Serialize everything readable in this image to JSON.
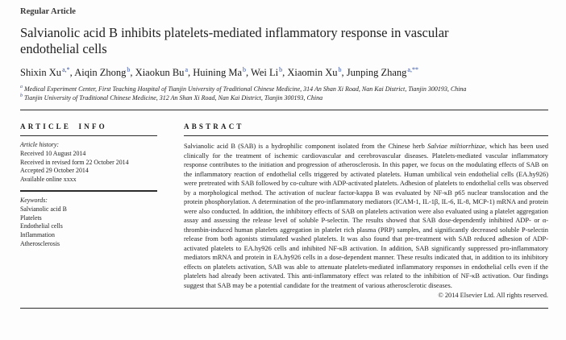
{
  "page": {
    "kicker": "Regular Article",
    "title": "Salvianolic acid B inhibits platelets-mediated inflammatory response in vascular endothelial cells"
  },
  "authors": [
    {
      "name": "Shixin Xu",
      "sup": "a,*"
    },
    {
      "name": "Aiqin Zhong",
      "sup": "b"
    },
    {
      "name": "Xiaokun Bu",
      "sup": "a"
    },
    {
      "name": "Huining Ma",
      "sup": "b"
    },
    {
      "name": "Wei Li",
      "sup": "b"
    },
    {
      "name": "Xiaomin Xu",
      "sup": "b"
    },
    {
      "name": "Junping Zhang",
      "sup": "a,**"
    }
  ],
  "affiliations": [
    {
      "marker": "a",
      "text": "Medical Experiment Center, First Teaching Hospital of Tianjin University of Traditional Chinese Medicine, 314 An Shan Xi Road, Nan Kai District, Tianjin 300193, China"
    },
    {
      "marker": "b",
      "text": "Tianjin University of Traditional Chinese Medicine, 312 An Shan Xi Road, Nan Kai District, Tianjin 300193, China"
    }
  ],
  "article_info": {
    "heading": "ARTICLE INFO",
    "history_label": "Article history:",
    "history": [
      "Received 10 August 2014",
      "Received in revised form 22 October 2014",
      "Accepted 29 October 2014",
      "Available online xxxx"
    ],
    "keywords_label": "Keywords:",
    "keywords": [
      "Salvianolic acid B",
      "Platelets",
      "Endothelial cells",
      "Inflammation",
      "Atherosclerosis"
    ]
  },
  "abstract": {
    "heading": "ABSTRACT",
    "lead": "Salvianolic acid B (SAB) is a hydrophilic component isolated from the Chinese herb ",
    "italic_term": "Salviae miltiorrhizae",
    "body": ", which has been used clinically for the treatment of ischemic cardiovascular and cerebrovascular diseases. Platelets-mediated vascular inflammatory response contributes to the initiation and progression of atherosclerosis. In this paper, we focus on the modulating effects of SAB on the inflammatory reaction of endothelial cells triggered by activated platelets. Human umbilical vein endothelial cells (EA.hy926) were pretreated with SAB followed by co-culture with ADP-activated platelets. Adhesion of platelets to endothelial cells was observed by a morphological method. The activation of nuclear factor-kappa B was evaluated by NF-κB p65 nuclear translocation and the protein phosphorylation. A determination of the pro-inflammatory mediators (ICAM-1, IL-1β, IL-6, IL-8, MCP-1) mRNA and protein were also conducted. In addition, the inhibitory effects of SAB on platelets activation were also evaluated using a platelet aggregation assay and assessing the release level of soluble P-selectin. The results showed that SAB dose-dependently inhibited ADP- or α-thrombin-induced human platelets aggregation in platelet rich plasma (PRP) samples, and significantly decreased soluble P-selectin release from both agonists stimulated washed platelets. It was also found that pre-treatment with SAB reduced adhesion of ADP-activated platelets to EA.hy926 cells and inhibited NF-κB activation. In addition, SAB significantly suppressed pro-inflammatory mediators mRNA and protein in EA.hy926 cells in a dose-dependent manner. These results indicated that, in addition to its inhibitory effects on platelets activation, SAB was able to attenuate platelets-mediated inflammatory responses in endothelial cells even if the platelets had already been activated. This anti-inflammatory effect was related to the inhibition of NF-κB activation. Our findings suggest that SAB may be a potential candidate for the treatment of various atherosclerotic diseases.",
    "copyright": "© 2014 Elsevier Ltd. All rights reserved."
  }
}
